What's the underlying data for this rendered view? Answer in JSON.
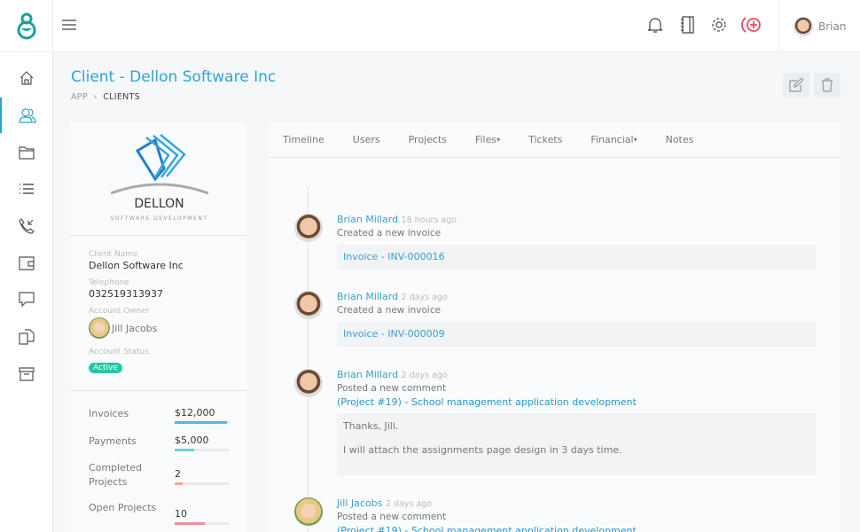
{
  "topbar": {
    "user_name": "Brian"
  },
  "page": {
    "title": "Client - Dellon Software Inc",
    "breadcrumb": [
      "APP",
      "CLIENTS"
    ]
  },
  "client": {
    "logo_text": "DELLON",
    "logo_sub": "SOFTWARE DEVELOPMENT",
    "fields": [
      {
        "label": "Client Name",
        "value": "Dellon Software Inc"
      },
      {
        "label": "Telephone",
        "value": "032519313937"
      }
    ],
    "owner_label": "Account Owner",
    "owner": "Jill Jacobs",
    "status_label": "Account Status",
    "status": "Active",
    "stats": [
      {
        "label": "Invoices",
        "value": "$12,000",
        "progress": 0.95,
        "color": "#5bb6dd"
      },
      {
        "label": "Payments",
        "value": "$5,000",
        "progress": 0.35,
        "color": "#6fd3c6"
      },
      {
        "label": "Completed Projects",
        "value": "2",
        "progress": 0.15,
        "color": "#f2a98a"
      },
      {
        "label": "Open Projects",
        "value": "10",
        "progress": 0.55,
        "color": "#ef8f98"
      }
    ]
  },
  "tabs": [
    {
      "label": "Timeline"
    },
    {
      "label": "Users"
    },
    {
      "label": "Projects"
    },
    {
      "label": "Files",
      "dropdown": true
    },
    {
      "label": "Tickets"
    },
    {
      "label": "Financial",
      "dropdown": true
    },
    {
      "label": "Notes"
    }
  ],
  "timeline": [
    {
      "name": "Brian Millard",
      "time": "18 hours ago",
      "action": "Created a new invoice",
      "link": "Invoice - INV-000016"
    },
    {
      "name": "Brian Millard",
      "time": "2 days ago",
      "action": "Created a new invoice",
      "link": "Invoice - INV-000009"
    },
    {
      "name": "Brian Millard",
      "time": "2 days ago",
      "action": "Posted a new comment",
      "project": "(Project #19) - School management application development",
      "comment": [
        "Thanks, Jill.",
        "I will attach the assignments page design in 3 days time."
      ]
    },
    {
      "name": "Jill Jacobs",
      "time": "2 days ago",
      "action": "Posted a new comment",
      "project": "(Project #19) - School management application development"
    }
  ]
}
